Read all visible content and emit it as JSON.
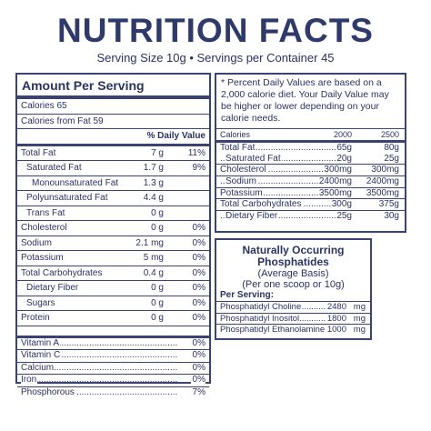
{
  "title": "NUTRITION FACTS",
  "serving_line": "Serving Size 10g •  Servings per Container 45",
  "left_panel": {
    "amount_header": "Amount Per Serving",
    "calories": "Calories  65",
    "calories_fat": "Calories from Fat  59",
    "dv_header": "% Daily Value",
    "nutrients": [
      {
        "name": "Total Fat",
        "amount": "7 g",
        "pct": "11%"
      },
      {
        "name": "Saturated Fat",
        "amount": "1.7 g",
        "pct": "9%"
      },
      {
        "name": "Monounsaturated Fat",
        "amount": "1.3 g",
        "pct": ""
      },
      {
        "name": "Polyunsaturated Fat",
        "amount": "4.4 g",
        "pct": ""
      },
      {
        "name": "Trans Fat",
        "amount": "0 g",
        "pct": ""
      },
      {
        "name": "Cholesterol",
        "amount": "0 g",
        "pct": "0%"
      },
      {
        "name": "Sodium",
        "amount": "2.1 mg",
        "pct": "0%"
      },
      {
        "name": "Potassium",
        "amount": "5 mg",
        "pct": "0%"
      },
      {
        "name": "Total Carbohydrates",
        "amount": "0.4 g",
        "pct": "0%"
      },
      {
        "name": "Dietary Fiber",
        "amount": "0 g",
        "pct": "0%"
      },
      {
        "name": "Sugars",
        "amount": "0 g",
        "pct": "0%"
      },
      {
        "name": "Protein",
        "amount": "0 g",
        "pct": "0%"
      }
    ],
    "vitamins": [
      {
        "name": "Vitamin A",
        "pct": "0%"
      },
      {
        "name": "Vitamin C",
        "pct": "0%"
      },
      {
        "name": "Calcium",
        "pct": "0%"
      },
      {
        "name": "Iron",
        "pct": "0%"
      },
      {
        "name": "Phosphorous",
        "pct": "7%"
      }
    ]
  },
  "dv_panel": {
    "note": "* Percent Daily Values are based on a 2,000 calorie diet. Your Daily Value may be higher or lower depending on your calorie needs.",
    "col_label": "Calories",
    "col_2000": "2000",
    "col_2500": "2500",
    "rows": [
      {
        "name": "Total Fat",
        "v2000": "65g",
        "v2500": "80g"
      },
      {
        "name": "Saturated Fat",
        "v2000": "20g",
        "v2500": "25g"
      },
      {
        "name": "Cholesterol",
        "v2000": "300mg",
        "v2500": "300mg"
      },
      {
        "name": "Sodium",
        "v2000": "2400mg",
        "v2500": "2400mg"
      },
      {
        "name": "Potassium",
        "v2000": "3500mg",
        "v2500": "3500mg"
      },
      {
        "name": "Total Carbohydrates",
        "v2000": "300g",
        "v2500": "375g"
      },
      {
        "name": "Dietary Fiber",
        "v2000": "25g",
        "v2500": "30g"
      }
    ]
  },
  "phosphatides": {
    "title": "Naturally Occurring Phosphatides",
    "basis": "(Average Basis)",
    "per": "(Per one scoop or 10g)",
    "per_serving": "Per Serving:",
    "rows": [
      {
        "name": "Phosphatidyl Choline",
        "amount": "2480",
        "unit": "mg"
      },
      {
        "name": "Phosphatidyl Inositol",
        "amount": "1800",
        "unit": "mg"
      },
      {
        "name": "Phosphatidyl Ethanolamine",
        "amount": "1000",
        "unit": "mg"
      }
    ]
  }
}
